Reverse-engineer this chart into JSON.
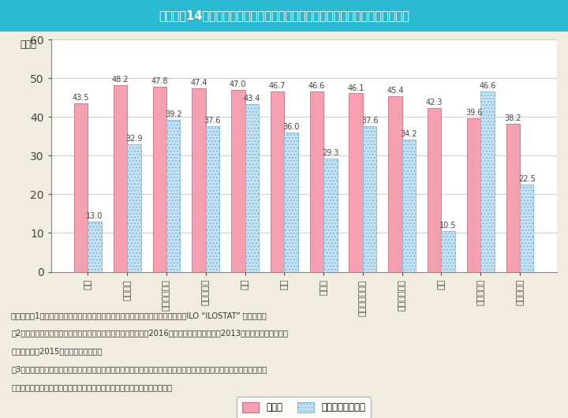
{
  "title": "Ｉ－２－14図　就業者及び管理的職業従事者に占める女性の割合（国際比較）",
  "title_bg_color": "#29b9d0",
  "title_text_color": "#ffffff",
  "bg_color": "#f0ece0",
  "plot_bg_color": "#ffffff",
  "ylabel": "（％）",
  "ylim": [
    0,
    60
  ],
  "yticks": [
    0,
    10,
    20,
    30,
    40,
    50,
    60
  ],
  "categories": [
    "日本",
    "フランス",
    "スウェーデン",
    "ノルウェー",
    "米国",
    "英国",
    "ドイツ",
    "オーストラリア",
    "シンガポール",
    "韓国",
    "フィリピン",
    "マレーシア"
  ],
  "employed": [
    43.5,
    48.2,
    47.8,
    47.4,
    47.0,
    46.7,
    46.6,
    46.1,
    45.4,
    42.3,
    39.6,
    38.2
  ],
  "managerial": [
    13.0,
    32.9,
    39.2,
    37.6,
    43.4,
    36.0,
    29.3,
    37.6,
    34.2,
    10.5,
    46.6,
    22.5
  ],
  "bar_color_employed": "#f4a0b0",
  "bar_edge_employed": "#cc7080",
  "bar_color_managerial": "#c8e4f4",
  "bar_edge_managerial": "#80b8d8",
  "legend_employed": "就業者",
  "legend_managerial": "管理的職業従事者",
  "note_line1": "（備考）、1．総務省「労働力調査（基本集計）」（平成２８年），その他の国はILO “ILOSTAT” より作成。",
  "note_line2": "　2．フランス，スウェーデン，ノルウェー，英国及びドイツは2016（平成２８）年，米国は2013（平成２５）年．その",
  "note_line3": "　　他の国は2015（平成２７）年の値",
  "note_line4": "　3．総務省「労働力調査」では，「管理的職業従事者」とは，就業者のうち，会社役員，企業の課長相当職以上，管理",
  "note_line5": "　　的公務員等。また，「管理的職業従事者」の定義は国によって異なる。",
  "bar_width": 0.35
}
